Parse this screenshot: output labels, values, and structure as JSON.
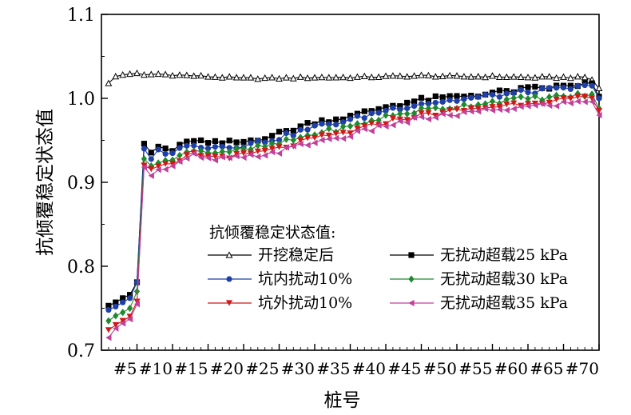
{
  "chart_data": {
    "type": "line",
    "xlabel": "桩号",
    "ylabel": "抗倾覆稳定状态值",
    "xlim": [
      0,
      70
    ],
    "ylim": [
      0.7,
      1.1
    ],
    "yticks": [
      "0.7",
      "0.8",
      "0.9",
      "1.0",
      "1.1"
    ],
    "xticks": [
      {
        "value": 5,
        "label": "#5"
      },
      {
        "value": 10,
        "label": "#10"
      },
      {
        "value": 15,
        "label": "#15"
      },
      {
        "value": 20,
        "label": "#20"
      },
      {
        "value": 25,
        "label": "#25"
      },
      {
        "value": 30,
        "label": "#30"
      },
      {
        "value": 35,
        "label": "#35"
      },
      {
        "value": 40,
        "label": "#40"
      },
      {
        "value": 45,
        "label": "#45"
      },
      {
        "value": 50,
        "label": "#50"
      },
      {
        "value": 55,
        "label": "#55"
      },
      {
        "value": 60,
        "label": "#60"
      },
      {
        "value": 65,
        "label": "#65"
      },
      {
        "value": 70,
        "label": "#70"
      }
    ],
    "legend_title": "抗倾覆稳定状态值:",
    "legend_position": "center-bottom",
    "grid": false,
    "series": [
      {
        "name": "开挖稳定后",
        "color": "#000000",
        "marker": "triangle-open",
        "anchors": [
          [
            1,
            1.018
          ],
          [
            2,
            1.026
          ],
          [
            3,
            1.028
          ],
          [
            4,
            1.029
          ],
          [
            5,
            1.03
          ],
          [
            6,
            1.028
          ],
          [
            8,
            1.029
          ],
          [
            10,
            1.028
          ],
          [
            15,
            1.026
          ],
          [
            20,
            1.024
          ],
          [
            25,
            1.024
          ],
          [
            30,
            1.025
          ],
          [
            35,
            1.025
          ],
          [
            40,
            1.026
          ],
          [
            45,
            1.027
          ],
          [
            50,
            1.026
          ],
          [
            55,
            1.026
          ],
          [
            60,
            1.025
          ],
          [
            65,
            1.025
          ],
          [
            68,
            1.025
          ],
          [
            69,
            1.022
          ],
          [
            70,
            1.012
          ]
        ]
      },
      {
        "name": "无扰动超载25 kPa",
        "color": "#000000",
        "marker": "square",
        "anchors": [
          [
            1,
            0.753
          ],
          [
            2,
            0.757
          ],
          [
            3,
            0.762
          ],
          [
            4,
            0.766
          ],
          [
            5,
            0.781
          ],
          [
            6,
            0.946
          ],
          [
            7,
            0.935
          ],
          [
            8,
            0.942
          ],
          [
            10,
            0.938
          ],
          [
            13,
            0.951
          ],
          [
            15,
            0.946
          ],
          [
            20,
            0.948
          ],
          [
            25,
            0.958
          ],
          [
            30,
            0.972
          ],
          [
            35,
            0.978
          ],
          [
            40,
            0.99
          ],
          [
            45,
            0.998
          ],
          [
            50,
            1.002
          ],
          [
            55,
            1.006
          ],
          [
            60,
            1.011
          ],
          [
            65,
            1.014
          ],
          [
            69,
            1.018
          ],
          [
            70,
            1.002
          ]
        ]
      },
      {
        "name": "坑内扰动10%",
        "color": "#1f3fa8",
        "marker": "circle",
        "anchors": [
          [
            1,
            0.748
          ],
          [
            2,
            0.752
          ],
          [
            3,
            0.757
          ],
          [
            4,
            0.762
          ],
          [
            5,
            0.781
          ],
          [
            6,
            0.94
          ],
          [
            7,
            0.93
          ],
          [
            8,
            0.937
          ],
          [
            10,
            0.936
          ],
          [
            13,
            0.946
          ],
          [
            15,
            0.942
          ],
          [
            20,
            0.944
          ],
          [
            25,
            0.953
          ],
          [
            30,
            0.966
          ],
          [
            35,
            0.974
          ],
          [
            40,
            0.986
          ],
          [
            45,
            0.994
          ],
          [
            50,
            0.998
          ],
          [
            55,
            1.003
          ],
          [
            60,
            1.008
          ],
          [
            65,
            1.011
          ],
          [
            69,
            1.015
          ],
          [
            70,
            1.0
          ]
        ]
      },
      {
        "name": "无扰动超载30 kPa",
        "color": "#1e8a2e",
        "marker": "diamond",
        "anchors": [
          [
            1,
            0.735
          ],
          [
            2,
            0.741
          ],
          [
            3,
            0.745
          ],
          [
            4,
            0.75
          ],
          [
            5,
            0.77
          ],
          [
            6,
            0.928
          ],
          [
            7,
            0.92
          ],
          [
            8,
            0.926
          ],
          [
            10,
            0.926
          ],
          [
            13,
            0.94
          ],
          [
            15,
            0.936
          ],
          [
            20,
            0.938
          ],
          [
            25,
            0.946
          ],
          [
            30,
            0.958
          ],
          [
            35,
            0.966
          ],
          [
            40,
            0.978
          ],
          [
            45,
            0.986
          ],
          [
            50,
            0.99
          ],
          [
            55,
            0.996
          ],
          [
            60,
            1.0
          ],
          [
            65,
            1.002
          ],
          [
            69,
            1.005
          ],
          [
            70,
            0.988
          ]
        ]
      },
      {
        "name": "坑外扰动10%",
        "color": "#d01818",
        "marker": "triangle-down",
        "anchors": [
          [
            1,
            0.724
          ],
          [
            2,
            0.73
          ],
          [
            3,
            0.735
          ],
          [
            4,
            0.74
          ],
          [
            5,
            0.758
          ],
          [
            6,
            0.92
          ],
          [
            7,
            0.913
          ],
          [
            8,
            0.918
          ],
          [
            10,
            0.92
          ],
          [
            13,
            0.935
          ],
          [
            15,
            0.93
          ],
          [
            20,
            0.932
          ],
          [
            25,
            0.94
          ],
          [
            30,
            0.952
          ],
          [
            35,
            0.96
          ],
          [
            40,
            0.972
          ],
          [
            45,
            0.98
          ],
          [
            50,
            0.985
          ],
          [
            55,
            0.99
          ],
          [
            60,
            0.995
          ],
          [
            65,
            0.998
          ],
          [
            69,
            1.0
          ],
          [
            70,
            0.985
          ]
        ]
      },
      {
        "name": "无扰动超载35 kPa",
        "color": "#c0409a",
        "marker": "triangle-left",
        "anchors": [
          [
            1,
            0.715
          ],
          [
            2,
            0.726
          ],
          [
            3,
            0.732
          ],
          [
            4,
            0.737
          ],
          [
            5,
            0.755
          ],
          [
            6,
            0.918
          ],
          [
            7,
            0.91
          ],
          [
            8,
            0.914
          ],
          [
            10,
            0.918
          ],
          [
            13,
            0.932
          ],
          [
            15,
            0.927
          ],
          [
            20,
            0.929
          ],
          [
            25,
            0.937
          ],
          [
            30,
            0.948
          ],
          [
            35,
            0.956
          ],
          [
            40,
            0.968
          ],
          [
            45,
            0.976
          ],
          [
            50,
            0.981
          ],
          [
            55,
            0.986
          ],
          [
            60,
            0.99
          ],
          [
            65,
            0.994
          ],
          [
            69,
            0.996
          ],
          [
            70,
            0.98
          ]
        ]
      }
    ]
  }
}
